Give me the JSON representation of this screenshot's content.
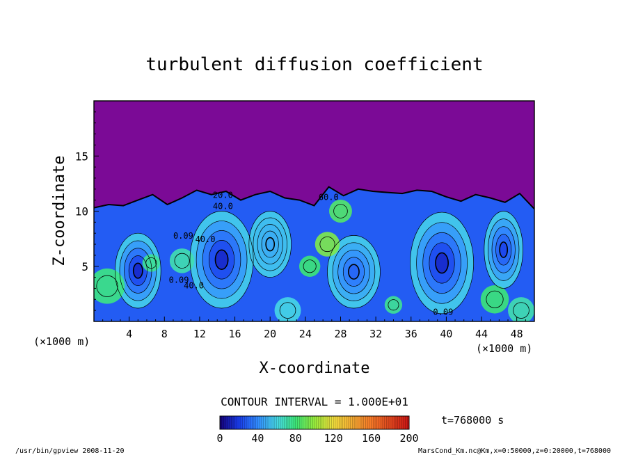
{
  "chart_data": {
    "type": "heatmap",
    "title": "turbulent diffusion coefficient",
    "xlabel": "X-coordinate",
    "ylabel": "Z-coordinate",
    "x_unit": "(×1000 m)",
    "z_unit": "(×1000 m)",
    "xlim": [
      0,
      50
    ],
    "ylim": [
      0,
      20
    ],
    "x_ticks": [
      4,
      8,
      12,
      16,
      20,
      24,
      28,
      32,
      36,
      40,
      44,
      48
    ],
    "y_ticks": [
      5,
      10,
      15
    ],
    "contour_interval_text": "CONTOUR INTERVAL = 1.000E+01",
    "contour_labels": [
      "20.0",
      "40.0",
      "60.0",
      "0.09",
      "40.0",
      "0.09",
      "40.0",
      "0.09"
    ],
    "colorbar": {
      "min": 0,
      "max": 200,
      "ticks": [
        0,
        40,
        80,
        120,
        160,
        200
      ]
    },
    "time_label": "t=768000 s",
    "background_color": "#7b0a96",
    "footer_left": "/usr/bin/gpview   2008-11-20",
    "footer_right": "MarsCond_Km.nc@Km,x=0:50000,z=0:20000,t=768000",
    "field": {
      "top_boundary_z": [
        10.3,
        10.6,
        10.5,
        11.0,
        11.5,
        10.6,
        11.2,
        11.9,
        11.5,
        11.8,
        11.0,
        11.5,
        11.8,
        11.2,
        11.0,
        10.5,
        12.2,
        11.4,
        12.0,
        11.8,
        11.7,
        11.6,
        11.9,
        11.8,
        11.3,
        10.9,
        11.5,
        11.2,
        10.8,
        11.6,
        10.2
      ],
      "eddies": [
        {
          "x": 5.0,
          "z": 4.6,
          "rx": 2.6,
          "rz": 3.4,
          "core": 5
        },
        {
          "x": 14.5,
          "z": 5.6,
          "rx": 3.6,
          "rz": 4.4,
          "core": 5
        },
        {
          "x": 20.0,
          "z": 7.0,
          "rx": 2.4,
          "rz": 3.0,
          "core": 45
        },
        {
          "x": 29.5,
          "z": 4.5,
          "rx": 3.0,
          "rz": 3.3,
          "core": 25
        },
        {
          "x": 39.5,
          "z": 5.3,
          "rx": 3.6,
          "rz": 4.6,
          "core": 5
        },
        {
          "x": 46.5,
          "z": 6.5,
          "rx": 2.2,
          "rz": 3.5,
          "core": 15
        }
      ],
      "hot_spots": [
        {
          "x": 26.5,
          "z": 7.0,
          "r": 1.4,
          "v": 95
        },
        {
          "x": 24.5,
          "z": 5.0,
          "r": 1.2,
          "v": 80
        },
        {
          "x": 28.0,
          "z": 10.0,
          "r": 1.3,
          "v": 85
        },
        {
          "x": 6.5,
          "z": 5.3,
          "r": 1.0,
          "v": 75
        },
        {
          "x": 10.0,
          "z": 5.5,
          "r": 1.4,
          "v": 70
        },
        {
          "x": 1.5,
          "z": 3.2,
          "r": 2.0,
          "v": 78
        },
        {
          "x": 34.0,
          "z": 1.5,
          "r": 1.0,
          "v": 75
        },
        {
          "x": 45.5,
          "z": 2.0,
          "r": 1.6,
          "v": 80
        },
        {
          "x": 48.5,
          "z": 1.0,
          "r": 1.5,
          "v": 70
        },
        {
          "x": 22.0,
          "z": 1.0,
          "r": 1.5,
          "v": 60
        }
      ]
    }
  }
}
